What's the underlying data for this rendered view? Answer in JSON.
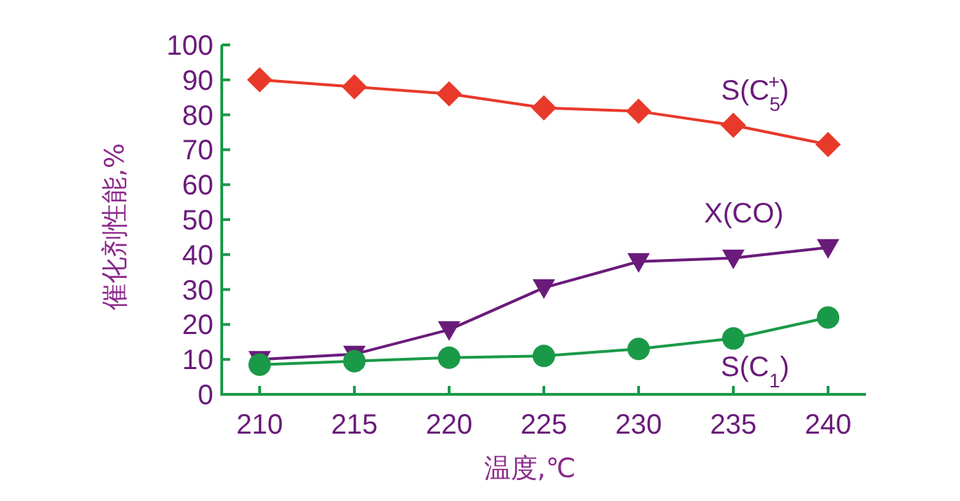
{
  "chart_data": {
    "type": "line",
    "xlabel": "温度,℃",
    "ylabel": "催化剂性能,%",
    "x": [
      210,
      215,
      220,
      225,
      230,
      235,
      240
    ],
    "series": [
      {
        "name": "S(C$_{5}$$^{+}$)",
        "color": "#e8392a",
        "marker": "diamond",
        "values": [
          90,
          88,
          86,
          82,
          81,
          77,
          71.5
        ]
      },
      {
        "name": "X(CO)",
        "color": "#6a1b7a",
        "marker": "triangle",
        "values": [
          10,
          11.5,
          18.5,
          30.5,
          38,
          39,
          42
        ]
      },
      {
        "name": "S(C$_{1}$)",
        "color": "#1a9a48",
        "marker": "circle",
        "values": [
          8.5,
          9.5,
          10.5,
          11,
          13,
          16,
          22
        ]
      }
    ],
    "xlim": [
      208,
      242
    ],
    "ylim": [
      0,
      100
    ],
    "xticks": [
      210,
      215,
      220,
      225,
      230,
      235,
      240
    ],
    "yticks": [
      0,
      10,
      20,
      30,
      40,
      50,
      60,
      70,
      80,
      90,
      100
    ],
    "legend": false,
    "grid": false,
    "line_style": "solid"
  }
}
